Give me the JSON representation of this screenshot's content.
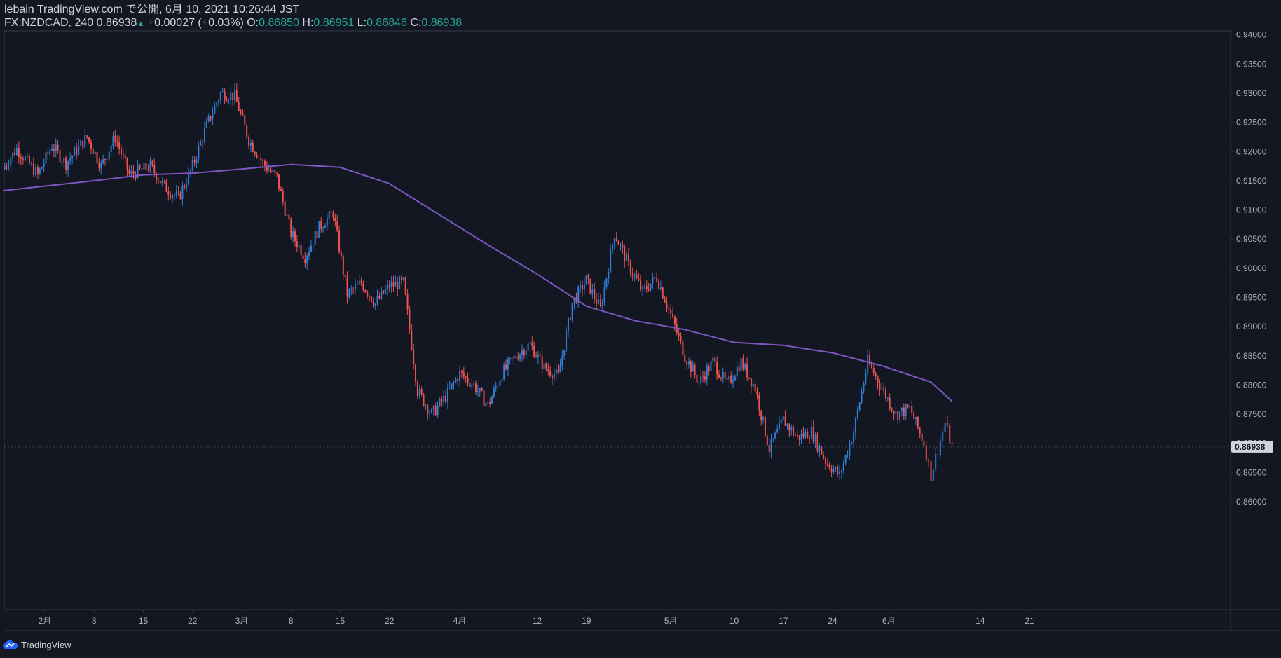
{
  "header": {
    "publish_line": "lebain TradingView.com で公開, 6月 10, 2021 10:26:44 JST",
    "symbol_interval": "FX:NZDCAD, 240",
    "last_price": "0.86938",
    "change_arrow": "▲",
    "change": "+0.00027 (+0.03%)",
    "open_label": "O:",
    "open_value": "0.86850",
    "high_label": "H:",
    "high_value": "0.86951",
    "low_label": "L:",
    "low_value": "0.86846",
    "close_label": "C:",
    "close_value": "0.86938"
  },
  "footer": {
    "brand": "TradingView",
    "logo_icon": "tradingview-cloud-icon"
  },
  "colors": {
    "background": "#131722",
    "up": "#2f7fd8",
    "down": "#ef5350",
    "ma": "#7e57c2",
    "text": "#d1d4dc",
    "ohlc_values": "#26a69a",
    "price_label_bg": "#d1d4dc",
    "price_label_text": "#131722"
  },
  "chart_data": {
    "type": "candlestick",
    "symbol": "FX:NZDCAD",
    "interval": "240",
    "y_axis": {
      "range": [
        0.8555,
        0.9415
      ],
      "ticks": [
        "0.86000",
        "0.86500",
        "0.87000",
        "0.87500",
        "0.88000",
        "0.88500",
        "0.89000",
        "0.89500",
        "0.90000",
        "0.90500",
        "0.91000",
        "0.91500",
        "0.92000",
        "0.92500",
        "0.93000",
        "0.93500",
        "0.94000"
      ],
      "current_price_label": "0.86938"
    },
    "x_axis": {
      "ticks": [
        "2月",
        "8",
        "15",
        "22",
        "3月",
        "8",
        "15",
        "22",
        "4月",
        "12",
        "19",
        "5月",
        "10",
        "17",
        "24",
        "6月",
        "14",
        "21"
      ],
      "tick_dates": [
        "2021-02-01",
        "2021-02-08",
        "2021-02-15",
        "2021-02-22",
        "2021-03-01",
        "2021-03-08",
        "2021-03-15",
        "2021-03-22",
        "2021-04-01",
        "2021-04-12",
        "2021-04-19",
        "2021-05-01",
        "2021-05-10",
        "2021-05-17",
        "2021-05-24",
        "2021-06-01",
        "2021-06-14",
        "2021-06-21"
      ]
    },
    "price_path": [
      [
        "2021-01-26",
        0.917
      ],
      [
        "2021-01-28",
        0.9205
      ],
      [
        "2021-01-31",
        0.916
      ],
      [
        "2021-02-02",
        0.921
      ],
      [
        "2021-02-04",
        0.918
      ],
      [
        "2021-02-07",
        0.9225
      ],
      [
        "2021-02-09",
        0.9175
      ],
      [
        "2021-02-11",
        0.9225
      ],
      [
        "2021-02-13",
        0.916
      ],
      [
        "2021-02-16",
        0.9175
      ],
      [
        "2021-02-18",
        0.914
      ],
      [
        "2021-02-20",
        0.912
      ],
      [
        "2021-02-22",
        0.9175
      ],
      [
        "2021-02-24",
        0.9245
      ],
      [
        "2021-02-26",
        0.93
      ],
      [
        "2021-02-28",
        0.9295
      ],
      [
        "2021-03-02",
        0.922
      ],
      [
        "2021-03-04",
        0.918
      ],
      [
        "2021-03-06",
        0.9155
      ],
      [
        "2021-03-08",
        0.906
      ],
      [
        "2021-03-10",
        0.902
      ],
      [
        "2021-03-12",
        0.907
      ],
      [
        "2021-03-14",
        0.9095
      ],
      [
        "2021-03-16",
        0.8955
      ],
      [
        "2021-03-18",
        0.8975
      ],
      [
        "2021-03-20",
        0.894
      ],
      [
        "2021-03-22",
        0.897
      ],
      [
        "2021-03-24",
        0.8975
      ],
      [
        "2021-03-26",
        0.879
      ],
      [
        "2021-03-28",
        0.875
      ],
      [
        "2021-03-30",
        0.878
      ],
      [
        "2021-04-01",
        0.882
      ],
      [
        "2021-04-03",
        0.88
      ],
      [
        "2021-04-05",
        0.8765
      ],
      [
        "2021-04-07",
        0.882
      ],
      [
        "2021-04-09",
        0.885
      ],
      [
        "2021-04-11",
        0.887
      ],
      [
        "2021-04-13",
        0.883
      ],
      [
        "2021-04-15",
        0.8815
      ],
      [
        "2021-04-17",
        0.894
      ],
      [
        "2021-04-19",
        0.898
      ],
      [
        "2021-04-21",
        0.893
      ],
      [
        "2021-04-23",
        0.906
      ],
      [
        "2021-04-25",
        0.9005
      ],
      [
        "2021-04-27",
        0.896
      ],
      [
        "2021-04-29",
        0.8985
      ],
      [
        "2021-05-01",
        0.892
      ],
      [
        "2021-05-03",
        0.885
      ],
      [
        "2021-05-05",
        0.8805
      ],
      [
        "2021-05-07",
        0.884
      ],
      [
        "2021-05-09",
        0.88
      ],
      [
        "2021-05-11",
        0.884
      ],
      [
        "2021-05-13",
        0.8795
      ],
      [
        "2021-05-15",
        0.869
      ],
      [
        "2021-05-17",
        0.874
      ],
      [
        "2021-05-19",
        0.871
      ],
      [
        "2021-05-21",
        0.872
      ],
      [
        "2021-05-23",
        0.867
      ],
      [
        "2021-05-25",
        0.8645
      ],
      [
        "2021-05-27",
        0.872
      ],
      [
        "2021-05-29",
        0.884
      ],
      [
        "2021-05-31",
        0.8795
      ],
      [
        "2021-06-02",
        0.875
      ],
      [
        "2021-06-04",
        0.876
      ],
      [
        "2021-06-06",
        0.87
      ],
      [
        "2021-06-07",
        0.8645
      ],
      [
        "2021-06-08",
        0.869
      ],
      [
        "2021-06-09",
        0.8735
      ],
      [
        "2021-06-10",
        0.8694
      ]
    ],
    "moving_average": [
      [
        "2021-01-26",
        0.9133
      ],
      [
        "2021-02-08",
        0.915
      ],
      [
        "2021-02-15",
        0.916
      ],
      [
        "2021-02-22",
        0.9163
      ],
      [
        "2021-03-01",
        0.917
      ],
      [
        "2021-03-08",
        0.9178
      ],
      [
        "2021-03-15",
        0.9173
      ],
      [
        "2021-03-22",
        0.9145
      ],
      [
        "2021-03-28",
        0.91
      ],
      [
        "2021-04-05",
        0.904
      ],
      [
        "2021-04-12",
        0.899
      ],
      [
        "2021-04-19",
        0.8935
      ],
      [
        "2021-04-26",
        0.891
      ],
      [
        "2021-05-03",
        0.8895
      ],
      [
        "2021-05-10",
        0.8873
      ],
      [
        "2021-05-17",
        0.8868
      ],
      [
        "2021-05-24",
        0.8855
      ],
      [
        "2021-05-31",
        0.8833
      ],
      [
        "2021-06-07",
        0.8805
      ],
      [
        "2021-06-10",
        0.8772
      ]
    ]
  }
}
